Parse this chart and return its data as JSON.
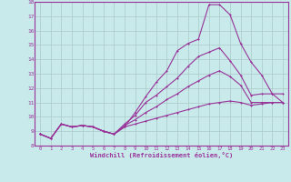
{
  "x": [
    0,
    1,
    2,
    3,
    4,
    5,
    6,
    7,
    8,
    9,
    10,
    11,
    12,
    13,
    14,
    15,
    16,
    17,
    18,
    19,
    20,
    21,
    22,
    23
  ],
  "line1": [
    8.8,
    8.5,
    9.5,
    9.3,
    9.4,
    9.3,
    9.0,
    8.8,
    9.3,
    10.3,
    11.4,
    12.4,
    13.2,
    14.6,
    15.1,
    15.4,
    17.8,
    17.8,
    17.1,
    15.1,
    13.8,
    12.9,
    11.6,
    11.6
  ],
  "line2": [
    8.8,
    8.5,
    9.5,
    9.3,
    9.4,
    9.3,
    9.0,
    8.8,
    9.5,
    10.1,
    11.0,
    11.5,
    12.1,
    12.7,
    13.5,
    14.2,
    14.5,
    14.8,
    13.9,
    12.9,
    11.5,
    11.6,
    11.6,
    11.0
  ],
  "line3": [
    8.8,
    8.5,
    9.5,
    9.3,
    9.4,
    9.3,
    9.0,
    8.8,
    9.4,
    9.8,
    10.3,
    10.7,
    11.2,
    11.6,
    12.1,
    12.5,
    12.9,
    13.2,
    12.8,
    12.2,
    11.0,
    11.0,
    11.0,
    11.0
  ],
  "line4": [
    8.8,
    8.5,
    9.5,
    9.3,
    9.4,
    9.3,
    9.0,
    8.8,
    9.3,
    9.5,
    9.7,
    9.9,
    10.1,
    10.3,
    10.5,
    10.7,
    10.9,
    11.0,
    11.1,
    11.0,
    10.8,
    10.9,
    11.0,
    11.0
  ],
  "bg_color": "#c8eaea",
  "line_color": "#993399",
  "grid_color": "#b8d8d8",
  "xlabel": "Windchill (Refroidissement éolien,°C)",
  "ylim": [
    8,
    18
  ],
  "xlim": [
    -0.5,
    23.5
  ],
  "yticks": [
    8,
    9,
    10,
    11,
    12,
    13,
    14,
    15,
    16,
    17,
    18
  ],
  "xticks": [
    0,
    1,
    2,
    3,
    4,
    5,
    6,
    7,
    8,
    9,
    10,
    11,
    12,
    13,
    14,
    15,
    16,
    17,
    18,
    19,
    20,
    21,
    22,
    23
  ]
}
